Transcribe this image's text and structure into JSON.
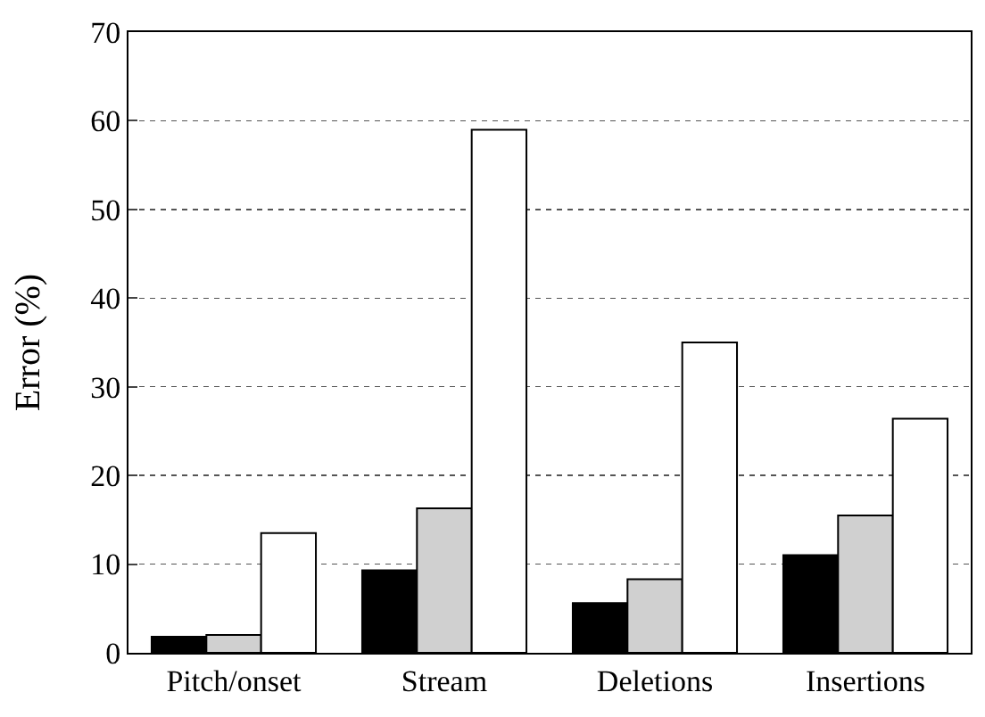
{
  "chart_data": {
    "type": "bar",
    "ylabel": "Error (%)",
    "categories": [
      "Pitch/onset",
      "Stream",
      "Deletions",
      "Insertions"
    ],
    "series": [
      {
        "color": "#000000",
        "values": [
          1.8,
          9.3,
          5.6,
          11.0
        ]
      },
      {
        "color": "#d0d0d0",
        "values": [
          2.0,
          16.3,
          8.3,
          15.5
        ]
      },
      {
        "color": "#ffffff",
        "values": [
          13.5,
          59.0,
          35.0,
          26.4
        ]
      }
    ],
    "ylim": [
      0,
      70
    ],
    "yticks": [
      0,
      10,
      20,
      30,
      40,
      50,
      60,
      70
    ],
    "grid": "y"
  }
}
